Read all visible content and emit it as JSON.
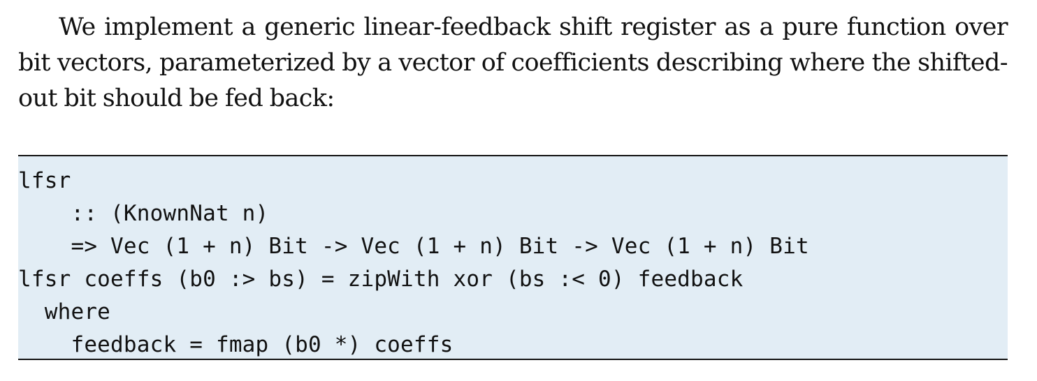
{
  "paragraph": {
    "text": "We implement a generic linear-feedback shift register as a pure function over bit vectors, parameterized by a vector of coefficients describing where the shifted-out bit should be fed back:"
  },
  "code": {
    "lines": [
      "lfsr",
      "    :: (KnownNat n)",
      "    => Vec (1 + n) Bit -> Vec (1 + n) Bit -> Vec (1 + n) Bit",
      "lfsr coeffs (b0 :> bs) = zipWith xor (bs :< 0) feedback",
      "  where",
      "    feedback = fmap (b0 *) coeffs"
    ]
  }
}
